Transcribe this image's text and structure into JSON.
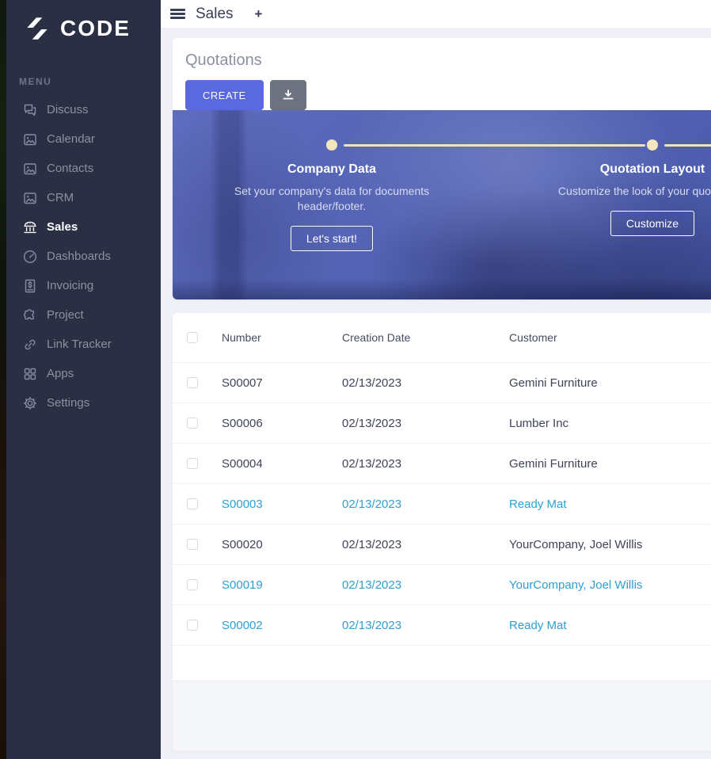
{
  "brand": {
    "name": "CODE",
    "logo_icon": "double-arrow-logo"
  },
  "sidebar": {
    "menu_label": "MENU",
    "items": [
      {
        "label": "Discuss",
        "icon": "chat-icon",
        "active": false
      },
      {
        "label": "Calendar",
        "icon": "image-icon",
        "active": false
      },
      {
        "label": "Contacts",
        "icon": "image-icon",
        "active": false
      },
      {
        "label": "CRM",
        "icon": "image-icon",
        "active": false
      },
      {
        "label": "Sales",
        "icon": "bank-icon",
        "active": true
      },
      {
        "label": "Dashboards",
        "icon": "gauge-icon",
        "active": false
      },
      {
        "label": "Invoicing",
        "icon": "invoice-icon",
        "active": false
      },
      {
        "label": "Project",
        "icon": "puzzle-icon",
        "active": false
      },
      {
        "label": "Link Tracker",
        "icon": "link-icon",
        "active": false
      },
      {
        "label": "Apps",
        "icon": "apps-icon",
        "active": false
      },
      {
        "label": "Settings",
        "icon": "gear-icon",
        "active": false
      }
    ]
  },
  "topbar": {
    "title": "Sales",
    "plus_label": "+"
  },
  "page": {
    "title": "Quotations",
    "create_label": "CREATE",
    "export_icon": "download-icon"
  },
  "onboarding": {
    "steps": [
      {
        "title": "Company Data",
        "description": "Set your company's data for documents header/footer.",
        "button": "Let's start!"
      },
      {
        "title": "Quotation Layout",
        "description": "Customize the look of your quotations.",
        "button": "Customize"
      }
    ]
  },
  "table": {
    "columns": [
      "Number",
      "Creation Date",
      "Customer"
    ],
    "rows": [
      {
        "number": "S00007",
        "date": "02/13/2023",
        "customer": "Gemini Furniture",
        "highlight": false
      },
      {
        "number": "S00006",
        "date": "02/13/2023",
        "customer": "Lumber Inc",
        "highlight": false
      },
      {
        "number": "S00004",
        "date": "02/13/2023",
        "customer": "Gemini Furniture",
        "highlight": false
      },
      {
        "number": "S00003",
        "date": "02/13/2023",
        "customer": "Ready Mat",
        "highlight": true
      },
      {
        "number": "S00020",
        "date": "02/13/2023",
        "customer": "YourCompany, Joel Willis",
        "highlight": false
      },
      {
        "number": "S00019",
        "date": "02/13/2023",
        "customer": "YourCompany, Joel Willis",
        "highlight": true
      },
      {
        "number": "S00002",
        "date": "02/13/2023",
        "customer": "Ready Mat",
        "highlight": true
      }
    ]
  },
  "colors": {
    "sidebar_bg": "#2b2f44",
    "accent_create": "#5a69e0",
    "export_gray": "#6d7280",
    "banner_overlay": "#5261b2",
    "timeline_cream": "#f5e7bd",
    "highlight_blue": "#2e9fd4"
  }
}
